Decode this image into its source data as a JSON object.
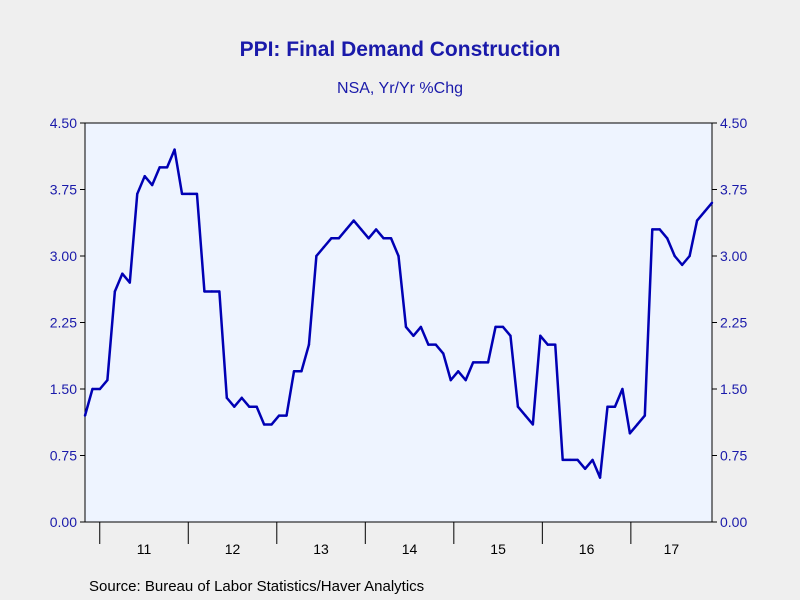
{
  "chart_data": {
    "type": "line",
    "title": "PPI: Final Demand Construction",
    "subtitle": "NSA, Yr/Yr %Chg",
    "source": "Source:  Bureau of Labor Statistics/Haver Analytics",
    "xlabel": "",
    "ylabel": "",
    "ylim": [
      0,
      4.5
    ],
    "yticks": [
      "0.00",
      "0.75",
      "1.50",
      "2.25",
      "3.00",
      "3.75",
      "4.50"
    ],
    "xticks": [
      "11",
      "12",
      "13",
      "14",
      "15",
      "16",
      "17"
    ],
    "grid": false,
    "x_start": "2010-11",
    "x_end": "2017-11",
    "series_color": "#0000b4",
    "series": [
      {
        "values": [
          1.2,
          1.5,
          1.5,
          1.6,
          2.6,
          2.8,
          2.7,
          3.7,
          3.9,
          3.8,
          4.0,
          4.0,
          4.2,
          3.7,
          3.7,
          3.7,
          2.6,
          2.6,
          2.6,
          1.4,
          1.3,
          1.4,
          1.3,
          1.3,
          1.1,
          1.1,
          1.2,
          1.2,
          1.7,
          1.7,
          2.0,
          3.0,
          3.1,
          3.2,
          3.2,
          3.3,
          3.4,
          3.3,
          3.2,
          3.3,
          3.2,
          3.2,
          3.0,
          2.2,
          2.1,
          2.2,
          2.0,
          2.0,
          1.9,
          1.6,
          1.7,
          1.6,
          1.8,
          1.8,
          1.8,
          2.2,
          2.2,
          2.1,
          1.3,
          1.2,
          1.1,
          2.1,
          2.0,
          2.0,
          0.7,
          0.7,
          0.7,
          0.6,
          0.7,
          0.5,
          1.3,
          1.3,
          1.5,
          1.0,
          1.1,
          1.2,
          3.3,
          3.3,
          3.2,
          3.0,
          2.9,
          3.0,
          3.4,
          3.5,
          3.6
        ]
      }
    ]
  }
}
